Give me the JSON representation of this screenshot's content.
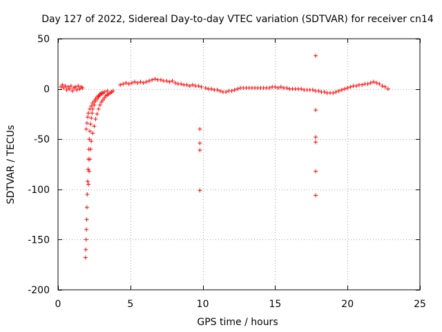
{
  "chart_data": {
    "type": "scatter",
    "title": "Day 127 of 2022, Sidereal Day-to-day VTEC variation (SDTVAR) for receiver cn14",
    "xlabel": "GPS time / hours",
    "ylabel": "SDTVAR / TECUs",
    "xlim": [
      0,
      25
    ],
    "ylim": [
      -200,
      50
    ],
    "xticks": [
      0,
      5,
      10,
      15,
      20,
      25
    ],
    "yticks": [
      50,
      0,
      -50,
      -100,
      -150,
      -200
    ],
    "xtick_labels": [
      "0",
      "5",
      "10",
      "15",
      "20",
      "25"
    ],
    "ytick_labels": [
      "50",
      "0",
      "-50",
      "-100",
      "-150",
      "-200"
    ],
    "grid": true,
    "marker": "+",
    "marker_color": "#ff0000",
    "series": [
      {
        "name": "SDTVAR",
        "color": "#ff0000",
        "points": [
          [
            0.2,
            2
          ],
          [
            0.3,
            4
          ],
          [
            0.4,
            1
          ],
          [
            0.5,
            3
          ],
          [
            0.6,
            -1
          ],
          [
            0.7,
            2
          ],
          [
            0.8,
            0
          ],
          [
            0.9,
            3
          ],
          [
            1.0,
            -2
          ],
          [
            1.1,
            1
          ],
          [
            1.2,
            2
          ],
          [
            1.3,
            -1
          ],
          [
            1.4,
            3
          ],
          [
            1.5,
            0
          ],
          [
            1.6,
            2
          ],
          [
            1.7,
            1
          ],
          [
            1.9,
            -168
          ],
          [
            1.92,
            -160
          ],
          [
            1.94,
            -150
          ],
          [
            1.96,
            -140
          ],
          [
            1.98,
            -130
          ],
          [
            2.0,
            -118
          ],
          [
            2.02,
            -105
          ],
          [
            2.05,
            -92
          ],
          [
            2.08,
            -80
          ],
          [
            2.1,
            -70
          ],
          [
            2.13,
            -60
          ],
          [
            2.16,
            -50
          ],
          [
            2.2,
            -42
          ],
          [
            2.25,
            -35
          ],
          [
            2.3,
            -29
          ],
          [
            2.35,
            -24
          ],
          [
            2.4,
            -20
          ],
          [
            2.5,
            -16
          ],
          [
            2.6,
            -12
          ],
          [
            2.7,
            -10
          ],
          [
            2.8,
            -8
          ],
          [
            2.9,
            -6
          ],
          [
            3.0,
            -5
          ],
          [
            3.1,
            -4
          ],
          [
            2.1,
            -95
          ],
          [
            2.15,
            -82
          ],
          [
            2.2,
            -70
          ],
          [
            2.25,
            -60
          ],
          [
            2.3,
            -52
          ],
          [
            2.4,
            -44
          ],
          [
            2.5,
            -37
          ],
          [
            2.6,
            -30
          ],
          [
            2.7,
            -25
          ],
          [
            2.8,
            -20
          ],
          [
            2.9,
            -16
          ],
          [
            3.0,
            -13
          ],
          [
            3.1,
            -11
          ],
          [
            3.2,
            -9
          ],
          [
            3.3,
            -7
          ],
          [
            3.4,
            -6
          ],
          [
            3.5,
            -5
          ],
          [
            3.6,
            -4
          ],
          [
            3.7,
            -3
          ],
          [
            3.8,
            -2
          ],
          [
            1.95,
            -40
          ],
          [
            2.0,
            -34
          ],
          [
            2.05,
            -28
          ],
          [
            2.1,
            -24
          ],
          [
            2.2,
            -20
          ],
          [
            2.3,
            -17
          ],
          [
            2.4,
            -14
          ],
          [
            2.5,
            -12
          ],
          [
            2.6,
            -10
          ],
          [
            2.7,
            -8
          ],
          [
            2.8,
            -7
          ],
          [
            2.9,
            -5
          ],
          [
            3.0,
            -4
          ],
          [
            3.2,
            -3
          ],
          [
            3.4,
            -2
          ],
          [
            4.3,
            4
          ],
          [
            4.5,
            5
          ],
          [
            4.7,
            6
          ],
          [
            4.9,
            5
          ],
          [
            5.1,
            6
          ],
          [
            5.3,
            7
          ],
          [
            5.5,
            6
          ],
          [
            5.7,
            7
          ],
          [
            5.9,
            6
          ],
          [
            6.1,
            7
          ],
          [
            6.3,
            8
          ],
          [
            6.5,
            9
          ],
          [
            6.7,
            10
          ],
          [
            6.9,
            9
          ],
          [
            7.1,
            9
          ],
          [
            7.3,
            8
          ],
          [
            7.5,
            8
          ],
          [
            7.7,
            7
          ],
          [
            7.9,
            8
          ],
          [
            8.1,
            6
          ],
          [
            8.3,
            5
          ],
          [
            8.5,
            5
          ],
          [
            8.7,
            4
          ],
          [
            8.9,
            4
          ],
          [
            9.1,
            3
          ],
          [
            9.3,
            4
          ],
          [
            9.5,
            3
          ],
          [
            9.7,
            3
          ],
          [
            9.9,
            2
          ],
          [
            10.2,
            1
          ],
          [
            10.4,
            0
          ],
          [
            10.6,
            0
          ],
          [
            10.8,
            -1
          ],
          [
            11.0,
            -1
          ],
          [
            11.2,
            -2
          ],
          [
            11.4,
            -3
          ],
          [
            11.6,
            -3
          ],
          [
            11.8,
            -2
          ],
          [
            12.0,
            -2
          ],
          [
            12.2,
            -1
          ],
          [
            12.4,
            0
          ],
          [
            12.6,
            1
          ],
          [
            12.8,
            1
          ],
          [
            13.0,
            1
          ],
          [
            13.2,
            1
          ],
          [
            13.4,
            1
          ],
          [
            13.6,
            1
          ],
          [
            13.8,
            1
          ],
          [
            14.0,
            1
          ],
          [
            14.2,
            1
          ],
          [
            14.4,
            1
          ],
          [
            14.6,
            1
          ],
          [
            14.8,
            2
          ],
          [
            15.0,
            2
          ],
          [
            15.2,
            1
          ],
          [
            15.4,
            2
          ],
          [
            15.6,
            1
          ],
          [
            15.8,
            1
          ],
          [
            16.0,
            0
          ],
          [
            16.2,
            0
          ],
          [
            16.4,
            0
          ],
          [
            16.6,
            0
          ],
          [
            16.8,
            0
          ],
          [
            17.0,
            -1
          ],
          [
            17.2,
            -1
          ],
          [
            17.4,
            -1
          ],
          [
            17.6,
            -1
          ],
          [
            17.8,
            -2
          ],
          [
            18.0,
            -2
          ],
          [
            18.2,
            -3
          ],
          [
            18.4,
            -3
          ],
          [
            18.6,
            -4
          ],
          [
            18.8,
            -4
          ],
          [
            19.0,
            -4
          ],
          [
            19.2,
            -3
          ],
          [
            19.4,
            -2
          ],
          [
            19.6,
            -1
          ],
          [
            19.8,
            0
          ],
          [
            20.0,
            1
          ],
          [
            20.2,
            2
          ],
          [
            20.4,
            3
          ],
          [
            20.6,
            3
          ],
          [
            20.8,
            4
          ],
          [
            21.0,
            4
          ],
          [
            21.2,
            5
          ],
          [
            21.4,
            5
          ],
          [
            21.6,
            6
          ],
          [
            21.8,
            7
          ],
          [
            22.0,
            6
          ],
          [
            22.2,
            5
          ],
          [
            22.4,
            3
          ],
          [
            22.6,
            2
          ],
          [
            22.8,
            0
          ],
          [
            9.8,
            -40
          ],
          [
            9.8,
            -54
          ],
          [
            9.8,
            -61
          ],
          [
            9.8,
            -101
          ],
          [
            17.8,
            33
          ],
          [
            17.8,
            -21
          ],
          [
            17.8,
            -48
          ],
          [
            17.8,
            -53
          ],
          [
            17.8,
            -82
          ],
          [
            17.8,
            -106
          ]
        ]
      }
    ]
  }
}
